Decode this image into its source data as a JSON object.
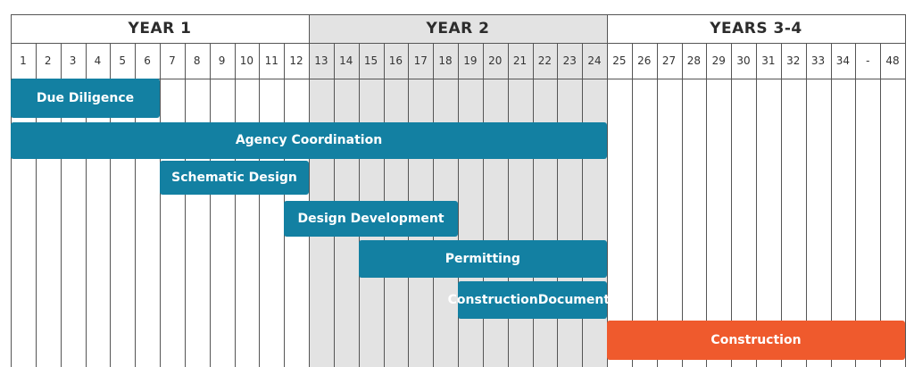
{
  "colors": {
    "bar_primary": "#1380a2",
    "bar_construction": "#ef5a2d",
    "year2_shade": "#e3e3e3",
    "grid": "#555555",
    "text": "#2c2c2c"
  },
  "years": [
    {
      "label": "YEAR 1",
      "first_column": 1,
      "last_column": 12,
      "shaded": false
    },
    {
      "label": "YEAR 2",
      "first_column": 13,
      "last_column": 24,
      "shaded": true
    },
    {
      "label": "YEARS 3-4",
      "first_column": 25,
      "last_column": 36,
      "shaded": false
    }
  ],
  "months": [
    "1",
    "2",
    "3",
    "4",
    "5",
    "6",
    "7",
    "8",
    "9",
    "10",
    "11",
    "12",
    "13",
    "14",
    "15",
    "16",
    "17",
    "18",
    "19",
    "20",
    "21",
    "22",
    "23",
    "24",
    "25",
    "26",
    "27",
    "28",
    "29",
    "30",
    "31",
    "32",
    "33",
    "34",
    "-",
    "48"
  ],
  "tasks": [
    {
      "label": "Due Diligence",
      "start_column": 1,
      "end_column": 6,
      "color": "primary"
    },
    {
      "label": "Agency Coordination",
      "start_column": 1,
      "end_column": 24,
      "color": "primary"
    },
    {
      "label": "Schematic Design",
      "start_column": 7,
      "end_column": 12,
      "color": "primary"
    },
    {
      "label": "Design Development",
      "start_column": 12,
      "end_column": 18,
      "color": "primary"
    },
    {
      "label": "Permitting",
      "start_column": 15,
      "end_column": 24,
      "color": "primary"
    },
    {
      "label": "Construction\nDocuments",
      "start_column": 19,
      "end_column": 24,
      "color": "primary"
    },
    {
      "label": "Construction",
      "start_column": 25,
      "end_column": 36,
      "color": "construction"
    }
  ]
}
